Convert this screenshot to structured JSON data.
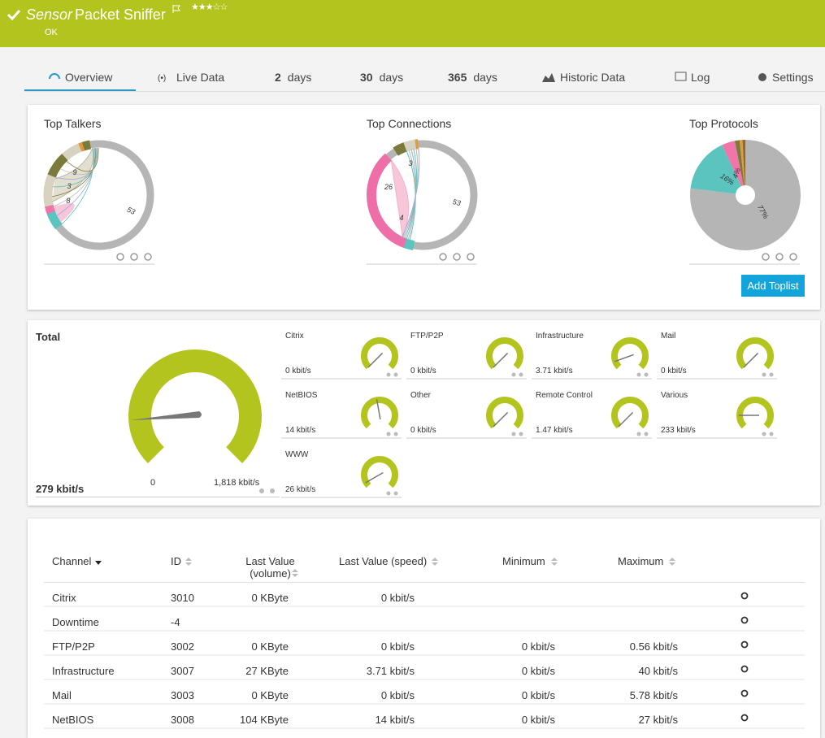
{
  "header": {
    "prefix": "Sensor",
    "name": "Packet Sniffer",
    "status": "OK"
  },
  "tabs": [
    {
      "label": "Overview"
    },
    {
      "label": "Live Data"
    },
    {
      "number": 2,
      "unit": "days"
    },
    {
      "number": 30,
      "unit": "days"
    },
    {
      "number": 365,
      "unit": "days"
    },
    {
      "label": "Historic Data"
    },
    {
      "label": "Log"
    },
    {
      "label": "Settings"
    }
  ],
  "toplists": {
    "items": [
      {
        "title": "Top Talkers",
        "labels": [
          "53",
          "9",
          "3",
          "8"
        ]
      },
      {
        "title": "Top Connections",
        "labels": [
          "26",
          "3",
          "53",
          "4"
        ]
      },
      {
        "title": "Top Protocols",
        "labels": [
          "16%",
          "4%",
          "77%"
        ]
      }
    ],
    "add_button": "Add Toplist"
  },
  "gauges": {
    "total": {
      "title": "Total",
      "value": "279 kbit/s",
      "min": "0",
      "max": "1,818 kbit/s"
    },
    "items": [
      {
        "name": "Citrix",
        "value": "0 kbit/s"
      },
      {
        "name": "FTP/P2P",
        "value": "0 kbit/s"
      },
      {
        "name": "Infrastructure",
        "value": "3.71 kbit/s"
      },
      {
        "name": "Mail",
        "value": "0 kbit/s"
      },
      {
        "name": "NetBIOS",
        "value": "14 kbit/s"
      },
      {
        "name": "Other",
        "value": "0 kbit/s"
      },
      {
        "name": "Remote Control",
        "value": "1.47 kbit/s"
      },
      {
        "name": "Various",
        "value": "233 kbit/s"
      },
      {
        "name": "WWW",
        "value": "26 kbit/s"
      }
    ]
  },
  "table": {
    "columns": {
      "channel": "Channel",
      "id": "ID",
      "volume": "Last Value (volume)",
      "speed": "Last Value (speed)",
      "minimum": "Minimum",
      "maximum": "Maximum"
    },
    "rows": [
      {
        "channel": "Citrix",
        "id": 3010,
        "volume": "0 KByte",
        "speed": "0 kbit/s"
      },
      {
        "channel": "Downtime",
        "id": -4
      },
      {
        "channel": "FTP/P2P",
        "id": 3002,
        "volume": "0 KByte",
        "speed": "0 kbit/s",
        "minimum": "0 kbit/s",
        "maximum": "0.56 kbit/s"
      },
      {
        "channel": "Infrastructure",
        "id": 3007,
        "volume": "27 KByte",
        "speed": "3.71 kbit/s",
        "minimum": "0 kbit/s",
        "maximum": "40 kbit/s"
      },
      {
        "channel": "Mail",
        "id": 3003,
        "volume": "0 KByte",
        "speed": "0 kbit/s",
        "minimum": "0 kbit/s",
        "maximum": "5.78 kbit/s"
      },
      {
        "channel": "NetBIOS",
        "id": 3008,
        "volume": "104 KByte",
        "speed": "14 kbit/s",
        "minimum": "0 kbit/s",
        "maximum": "27 kbit/s"
      }
    ]
  }
}
